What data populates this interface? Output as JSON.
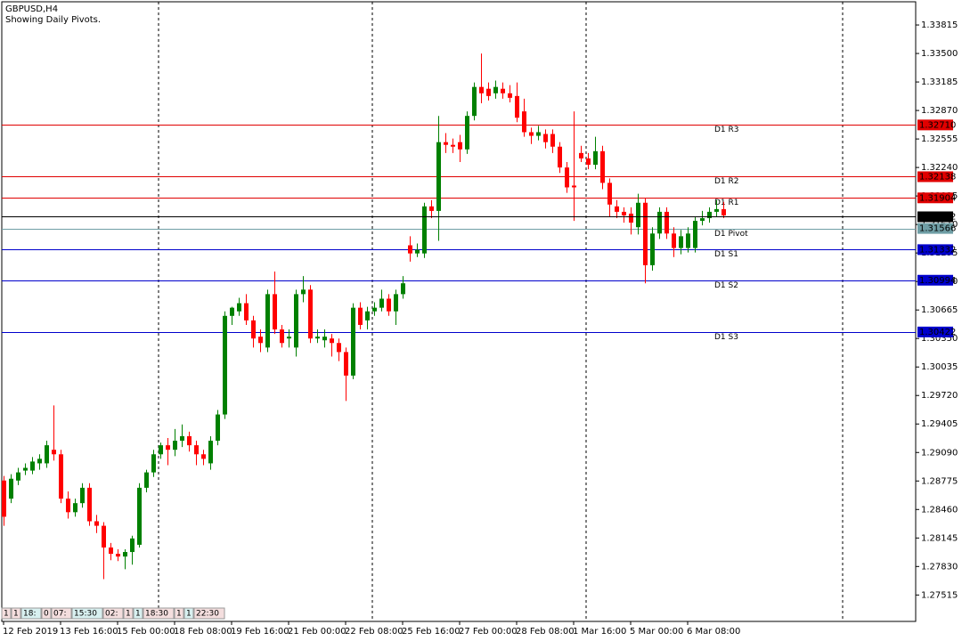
{
  "chart_data": {
    "type": "candlestick",
    "title": "GBPUSD,H4",
    "subtitle": "Showing Daily Pivots.",
    "categories": [
      "12 Feb 2019",
      null,
      null,
      null,
      null,
      null,
      null,
      null,
      "13 Feb 16:00",
      null,
      null,
      null,
      null,
      null,
      null,
      null,
      "15 Feb 00:00",
      null,
      null,
      null,
      null,
      null,
      null,
      null,
      "18 Feb 08:00",
      null,
      null,
      null,
      null,
      null,
      null,
      null,
      "19 Feb 16:00",
      null,
      null,
      null,
      null,
      null,
      null,
      null,
      "21 Feb 00:00",
      null,
      null,
      null,
      null,
      null,
      null,
      null,
      "22 Feb 08:00",
      null,
      null,
      null,
      null,
      null,
      null,
      null,
      "25 Feb 16:00",
      null,
      null,
      null,
      null,
      null,
      null,
      null,
      "27 Feb 00:00",
      null,
      null,
      null,
      null,
      null,
      null,
      null,
      "28 Feb 08:00",
      null,
      null,
      null,
      null,
      null,
      null,
      null,
      "1 Mar 16:00",
      null,
      null,
      null,
      null,
      null,
      null,
      null,
      "5 Mar 00:00",
      null,
      null,
      null,
      null,
      null,
      null,
      null,
      "6 Mar 08:00",
      null,
      null,
      null,
      null,
      null
    ],
    "candles": [
      [
        1.2878,
        1.2883,
        1.2828,
        1.2838
      ],
      [
        1.2858,
        1.2885,
        1.2853,
        1.288
      ],
      [
        1.2878,
        1.2892,
        1.2873,
        1.2887
      ],
      [
        1.2889,
        1.2897,
        1.2884,
        1.2892
      ],
      [
        1.2889,
        1.2904,
        1.2885,
        1.2899
      ],
      [
        1.2897,
        1.2907,
        1.289,
        1.2902
      ],
      [
        1.2897,
        1.2922,
        1.2892,
        1.2917
      ],
      [
        1.2912,
        1.2961,
        1.29,
        1.2907
      ],
      [
        1.2907,
        1.2912,
        1.2853,
        1.2858
      ],
      [
        1.2858,
        1.2866,
        1.2836,
        1.2843
      ],
      [
        1.2843,
        1.2858,
        1.2838,
        1.2853
      ],
      [
        1.2853,
        1.2875,
        1.2848,
        1.287
      ],
      [
        1.287,
        1.2875,
        1.2828,
        1.2833
      ],
      [
        1.2833,
        1.284,
        1.282,
        1.2828
      ],
      [
        1.2828,
        1.2832,
        1.2769,
        1.2804
      ],
      [
        1.2804,
        1.2809,
        1.279,
        1.2797
      ],
      [
        1.2797,
        1.2802,
        1.2789,
        1.2794
      ],
      [
        1.2794,
        1.2802,
        1.278,
        1.2799
      ],
      [
        1.2799,
        1.2817,
        1.2785,
        1.2814
      ],
      [
        1.2807,
        1.2875,
        1.2804,
        1.287
      ],
      [
        1.287,
        1.289,
        1.2865,
        1.2887
      ],
      [
        1.2887,
        1.2912,
        1.2882,
        1.2907
      ],
      [
        1.2907,
        1.292,
        1.2902,
        1.2917
      ],
      [
        1.2917,
        1.2925,
        1.2895,
        1.2912
      ],
      [
        1.2912,
        1.2935,
        1.2905,
        1.2922
      ],
      [
        1.2922,
        1.294,
        1.2915,
        1.2927
      ],
      [
        1.2927,
        1.2932,
        1.291,
        1.2917
      ],
      [
        1.2917,
        1.2922,
        1.2895,
        1.2907
      ],
      [
        1.2907,
        1.2912,
        1.2895,
        1.2902
      ],
      [
        1.2897,
        1.2927,
        1.289,
        1.2922
      ],
      [
        1.2922,
        1.2956,
        1.2917,
        1.2951
      ],
      [
        1.2951,
        1.3065,
        1.2946,
        1.306
      ],
      [
        1.306,
        1.307,
        1.305,
        1.3069
      ],
      [
        1.3065,
        1.308,
        1.306,
        1.3074
      ],
      [
        1.3074,
        1.3084,
        1.305,
        1.3055
      ],
      [
        1.3055,
        1.306,
        1.3025,
        1.3035
      ],
      [
        1.3037,
        1.3045,
        1.302,
        1.303
      ],
      [
        1.3025,
        1.3089,
        1.302,
        1.3084
      ],
      [
        1.3084,
        1.3109,
        1.304,
        1.3045
      ],
      [
        1.3045,
        1.305,
        1.3025,
        1.303
      ],
      [
        1.3035,
        1.3045,
        1.3025,
        1.3037
      ],
      [
        1.3025,
        1.3089,
        1.3015,
        1.3084
      ],
      [
        1.3084,
        1.3104,
        1.3075,
        1.3089
      ],
      [
        1.3089,
        1.3094,
        1.303,
        1.3035
      ],
      [
        1.3035,
        1.3045,
        1.303,
        1.3037
      ],
      [
        1.3033,
        1.3045,
        1.3025,
        1.3037
      ],
      [
        1.3035,
        1.304,
        1.3015,
        1.303
      ],
      [
        1.303,
        1.3035,
        1.301,
        1.302
      ],
      [
        1.302,
        1.3025,
        1.2966,
        1.2994
      ],
      [
        1.2994,
        1.3074,
        1.299,
        1.3069
      ],
      [
        1.3069,
        1.3075,
        1.3045,
        1.305
      ],
      [
        1.3055,
        1.307,
        1.3045,
        1.3065
      ],
      [
        1.3065,
        1.3075,
        1.306,
        1.3069
      ],
      [
        1.3069,
        1.3089,
        1.3065,
        1.3079
      ],
      [
        1.3079,
        1.3084,
        1.306,
        1.3065
      ],
      [
        1.3065,
        1.3089,
        1.305,
        1.3084
      ],
      [
        1.3084,
        1.3104,
        1.3079,
        1.3096
      ],
      [
        1.3138,
        1.3148,
        1.312,
        1.3129
      ],
      [
        1.3129,
        1.314,
        1.3125,
        1.3133
      ],
      [
        1.3129,
        1.3185,
        1.3124,
        1.3181
      ],
      [
        1.3181,
        1.3188,
        1.3168,
        1.3176
      ],
      [
        1.3176,
        1.3281,
        1.3143,
        1.3252
      ],
      [
        1.3252,
        1.3262,
        1.324,
        1.3249
      ],
      [
        1.3249,
        1.3256,
        1.324,
        1.3247
      ],
      [
        1.3252,
        1.326,
        1.323,
        1.3244
      ],
      [
        1.3244,
        1.3286,
        1.3239,
        1.3281
      ],
      [
        1.3281,
        1.3318,
        1.3276,
        1.3313
      ],
      [
        1.3313,
        1.335,
        1.3295,
        1.3306
      ],
      [
        1.3311,
        1.3318,
        1.3298,
        1.3303
      ],
      [
        1.3306,
        1.332,
        1.33,
        1.3313
      ],
      [
        1.3311,
        1.3318,
        1.33,
        1.3306
      ],
      [
        1.3306,
        1.3315,
        1.3296,
        1.3301
      ],
      [
        1.3303,
        1.3318,
        1.3274,
        1.3279
      ],
      [
        1.3286,
        1.33,
        1.3258,
        1.3263
      ],
      [
        1.3263,
        1.3268,
        1.325,
        1.3259
      ],
      [
        1.3259,
        1.327,
        1.3254,
        1.3263
      ],
      [
        1.3261,
        1.3266,
        1.3245,
        1.3252
      ],
      [
        1.3261,
        1.3266,
        1.324,
        1.3247
      ],
      [
        1.3247,
        1.3252,
        1.3218,
        1.3224
      ],
      [
        1.3224,
        1.323,
        1.3196,
        1.3202
      ],
      [
        1.3204,
        1.3286,
        1.3165,
        1.3202
      ],
      [
        1.324,
        1.3248,
        1.323,
        1.3234
      ],
      [
        1.3234,
        1.324,
        1.3222,
        1.3227
      ],
      [
        1.3227,
        1.3258,
        1.3222,
        1.3242
      ],
      [
        1.3242,
        1.3248,
        1.32,
        1.3207
      ],
      [
        1.3207,
        1.3212,
        1.317,
        1.3183
      ],
      [
        1.3181,
        1.3188,
        1.3168,
        1.3175
      ],
      [
        1.3175,
        1.318,
        1.3163,
        1.3171
      ],
      [
        1.3173,
        1.318,
        1.315,
        1.3163
      ],
      [
        1.3158,
        1.3195,
        1.315,
        1.3185
      ],
      [
        1.3185,
        1.319,
        1.3096,
        1.3116
      ],
      [
        1.3116,
        1.3158,
        1.311,
        1.3151
      ],
      [
        1.3151,
        1.318,
        1.3145,
        1.3175
      ],
      [
        1.3175,
        1.318,
        1.3145,
        1.3151
      ],
      [
        1.3151,
        1.3158,
        1.3125,
        1.3135
      ],
      [
        1.3135,
        1.3155,
        1.3128,
        1.3148
      ],
      [
        1.3135,
        1.3158,
        1.313,
        1.3151
      ],
      [
        1.3135,
        1.317,
        1.313,
        1.3165
      ],
      [
        1.3165,
        1.3176,
        1.316,
        1.3168
      ],
      [
        1.3168,
        1.318,
        1.3163,
        1.3175
      ],
      [
        1.3175,
        1.3188,
        1.317,
        1.3178
      ],
      [
        1.3178,
        1.3186,
        1.3168,
        1.3171
      ]
    ],
    "up_color": "#008000",
    "down_color": "#ff0000",
    "ylim": [
      1.27223,
      1.34091
    ],
    "yticks": [
      1.33815,
      {
        "value": 1.335,
        "label": "1.33500"
      },
      1.33185,
      {
        "value": 1.3287,
        "label": "1.32870"
      },
      1.32555,
      {
        "value": 1.3224,
        "label": "1.32240"
      },
      1.31925,
      {
        "value": 1.3161,
        "label": "1.31610"
      },
      1.31295,
      {
        "value": 1.3098,
        "label": "1.30980"
      },
      1.30665,
      {
        "value": 1.3035,
        "label": "1.30350"
      },
      1.30035,
      {
        "value": 1.2972,
        "label": "1.29720"
      },
      1.29405,
      {
        "value": 1.2909,
        "label": "1.29090"
      },
      1.28775,
      {
        "value": 1.2846,
        "label": "1.28460"
      },
      1.28145,
      {
        "value": 1.2783,
        "label": "1.27830"
      },
      1.27515
    ],
    "levels": [
      {
        "name": "D1 R3",
        "value": 1.3271,
        "label": "1.32710",
        "color": "#e00000"
      },
      {
        "name": "D1 R2",
        "value": 1.32138,
        "label": "1.32138",
        "color": "#e00000"
      },
      {
        "name": "D1 R1",
        "value": 1.31904,
        "label": "1.31904",
        "color": "#e00000"
      },
      {
        "name": "D1 Pivot",
        "value": 1.31566,
        "label": "1.31566",
        "color": "#6f9ea5"
      },
      {
        "name": "D1 S1",
        "value": 1.31332,
        "label": "1.31332",
        "color": "#0000cc"
      },
      {
        "name": "D1 S2",
        "value": 1.30994,
        "label": "1.30994",
        "color": "#0000cc"
      },
      {
        "name": "D1 S3",
        "value": 1.30422,
        "label": "1.30422",
        "color": "#0000cc"
      }
    ],
    "current_price": {
      "value": 1.31702,
      "label": "1.31702",
      "color": "#000000"
    },
    "session_tags": [
      "1",
      "1",
      "18:",
      "0",
      "07:",
      "15:30",
      "02:",
      "1",
      "1",
      "18:30",
      "1",
      "1",
      "22:30"
    ]
  }
}
